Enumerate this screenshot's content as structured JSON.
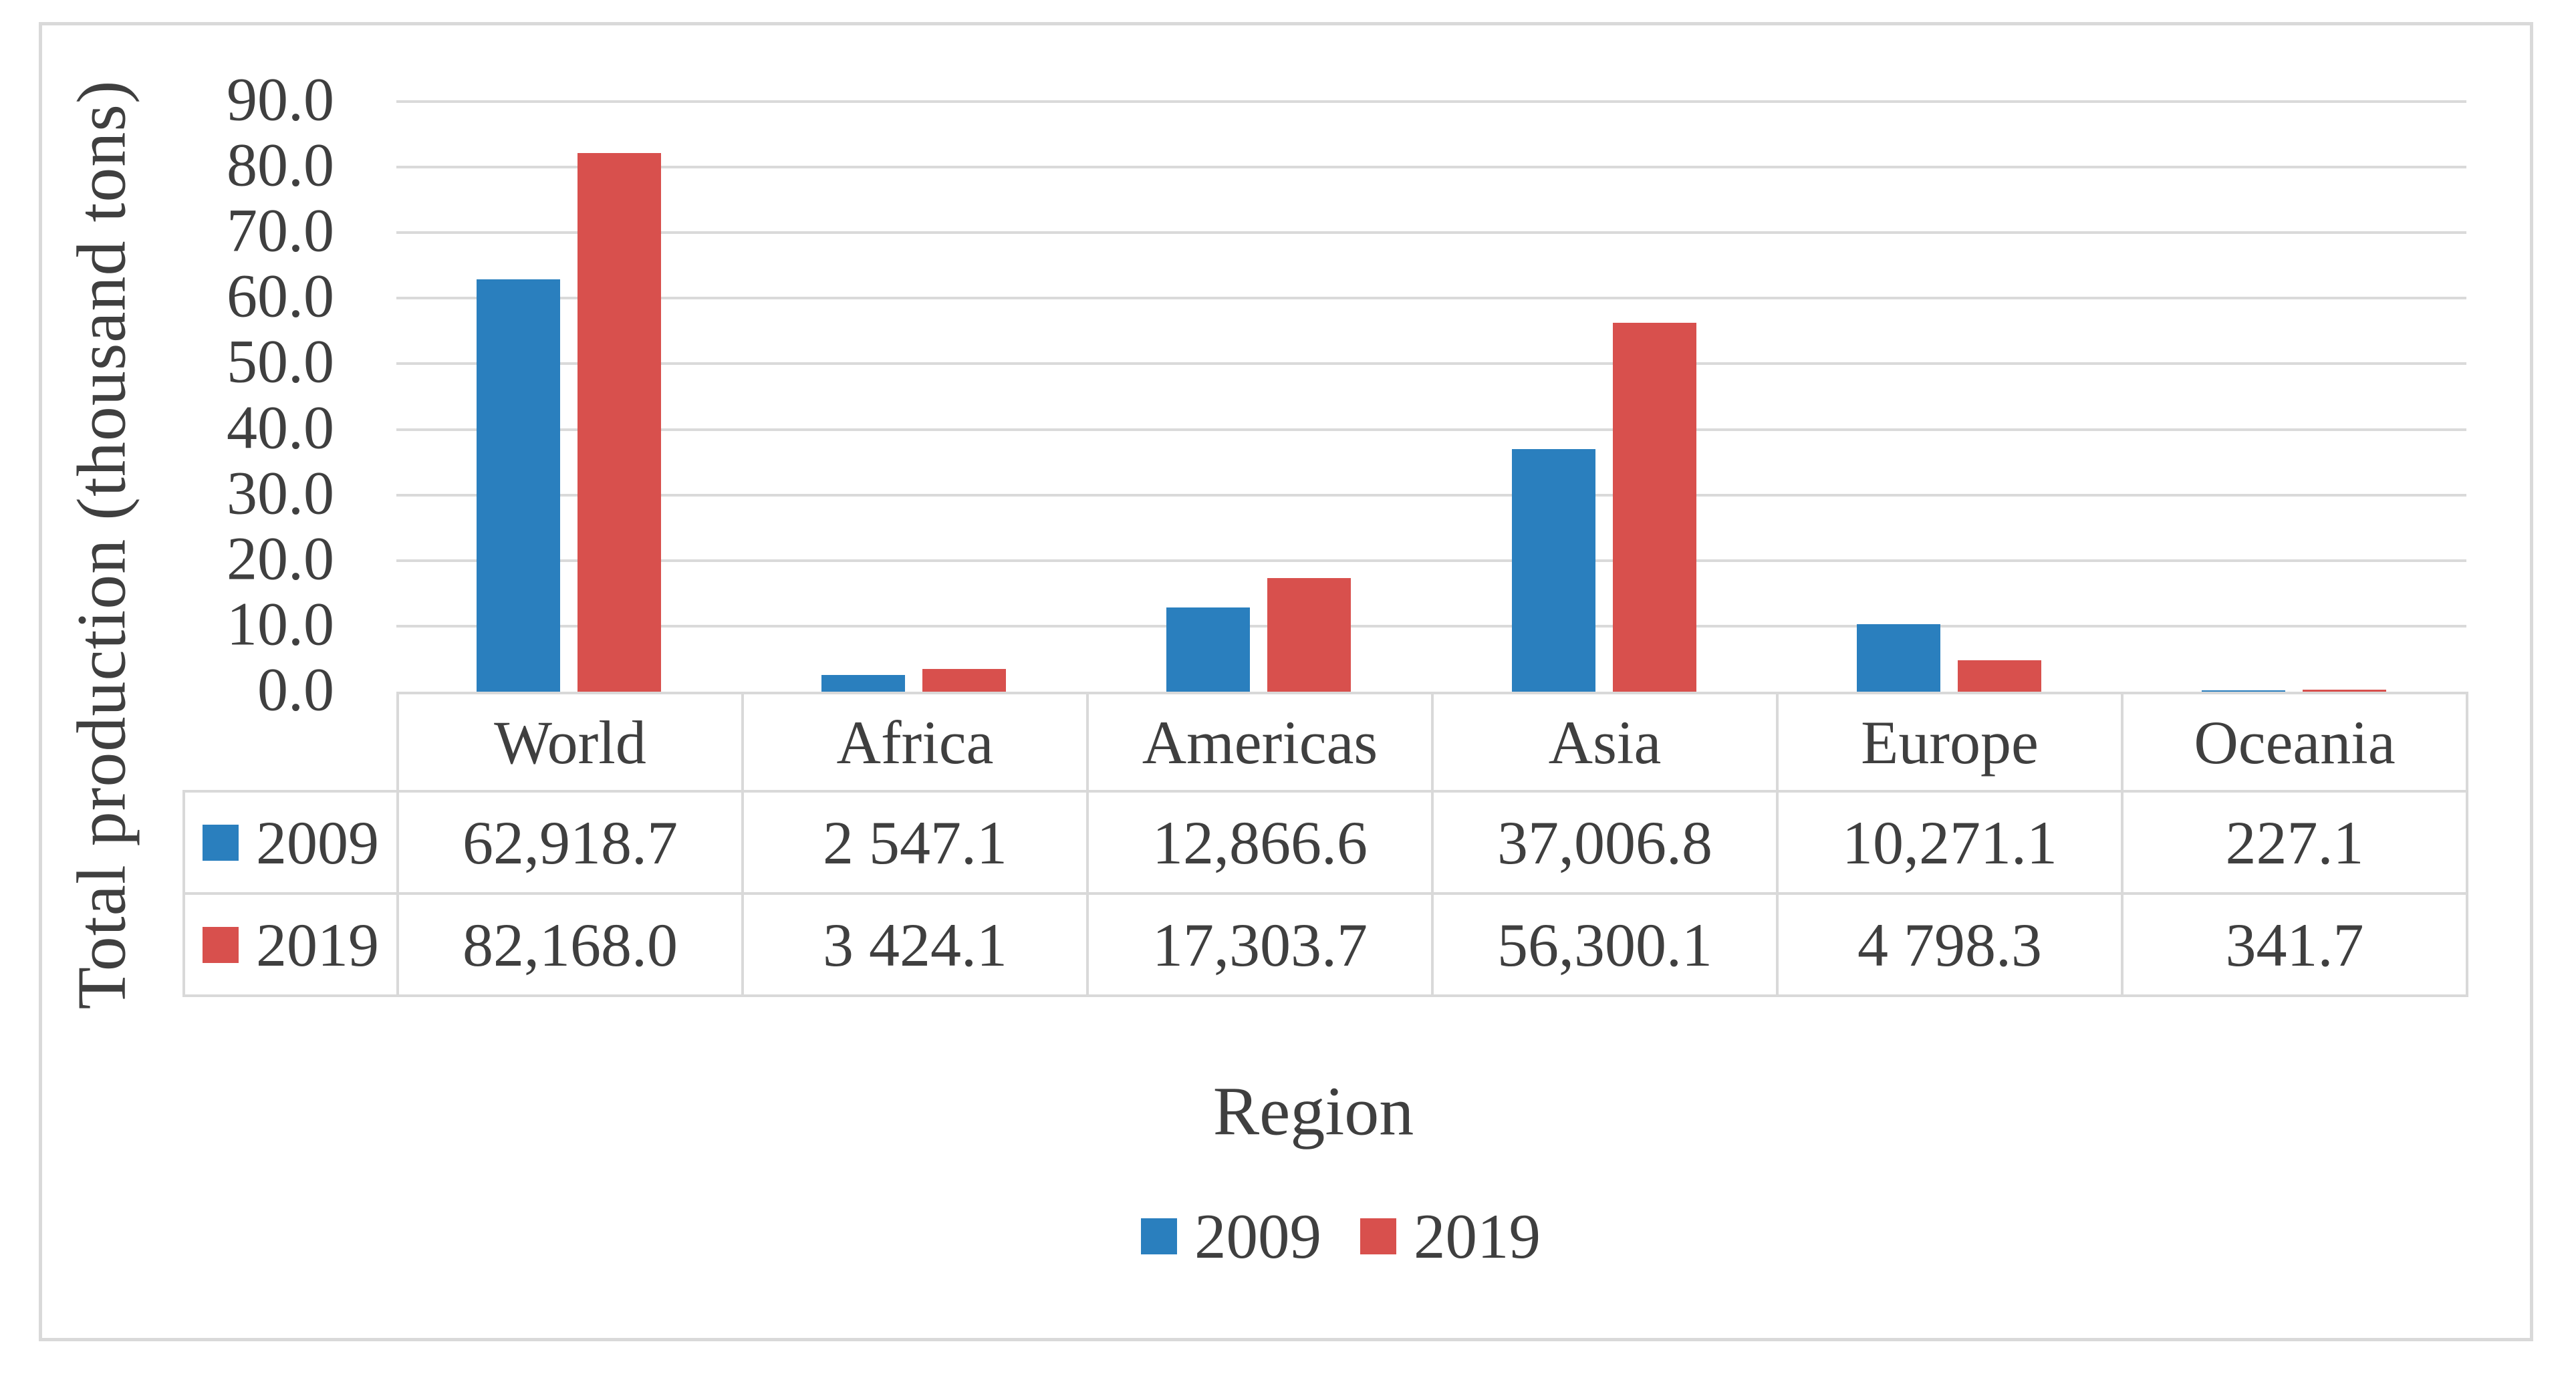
{
  "figure": {
    "y_axis_title": "Total production (thousand tons)",
    "x_axis_title": "Region",
    "y_ticks": [
      "90.0",
      "80.0",
      "70.0",
      "60.0",
      "50.0",
      "40.0",
      "30.0",
      "20.0",
      "10.0",
      "0.0"
    ]
  },
  "chart_data": {
    "type": "bar",
    "title": "",
    "xlabel": "Region",
    "ylabel": "Total production (thousand tons)",
    "categories": [
      "World",
      "Africa",
      "Americas",
      "Asia",
      "Europe",
      "Oceania"
    ],
    "series": [
      {
        "name": "2009",
        "color": "#2a7fbe",
        "values": [
          62918.7,
          2547.1,
          12866.6,
          37006.8,
          10271.1,
          227.1
        ],
        "value_labels": [
          "62,918.7",
          "2 547.1",
          "12,866.6",
          "37,006.8",
          "10,271.1",
          "227.1"
        ]
      },
      {
        "name": "2019",
        "color": "#d8504d",
        "values": [
          82168.0,
          3424.1,
          17303.7,
          56300.1,
          4798.3,
          341.7
        ],
        "value_labels": [
          "82,168.0",
          "3 424.1",
          "17,303.7",
          "56,300.1",
          "4 798.3",
          "341.7"
        ]
      }
    ],
    "axis_unit_note": "bars plotted as table value divided by 1000",
    "ylim": [
      0,
      90
    ],
    "y_tick_step": 10,
    "y_tick_labels": [
      "90.0",
      "80.0",
      "70.0",
      "60.0",
      "50.0",
      "40.0",
      "30.0",
      "20.0",
      "10.0",
      "0.0"
    ],
    "grid": true,
    "legend_position": "bottom",
    "has_data_table": true,
    "colors": {
      "series_2009": "#2a7fbe",
      "series_2019": "#d8504d",
      "gridline": "#dadada",
      "table_border": "#d9d9d9",
      "text": "#3f3f3f",
      "frame_border": "#d9d9d9"
    }
  }
}
